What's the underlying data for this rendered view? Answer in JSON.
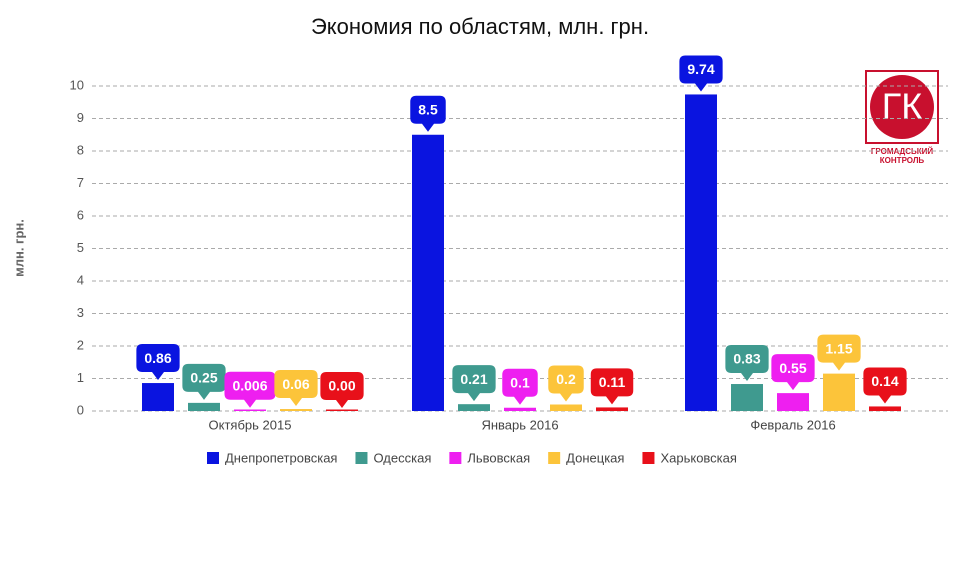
{
  "chart_data": {
    "type": "bar",
    "title": "Экономия по областям, млн. грн.",
    "y_label": "млн. грн.",
    "categories": [
      "Октябрь 2015",
      "Январь 2016",
      "Февраль 2016"
    ],
    "series": [
      {
        "name": "Днепропетровская",
        "color": "#0a14e0",
        "values": [
          0.86,
          8.5,
          9.74
        ],
        "value_labels": [
          "0.86",
          "8.5",
          "9.74"
        ]
      },
      {
        "name": "Одесская",
        "color": "#3f9a8f",
        "values": [
          0.25,
          0.21,
          0.83
        ],
        "value_labels": [
          "0.25",
          "0.21",
          "0.83"
        ]
      },
      {
        "name": "Львовская",
        "color": "#ee1ff0",
        "values": [
          0.006,
          0.1,
          0.55
        ],
        "value_labels": [
          "0.006",
          "0.1",
          "0.55"
        ]
      },
      {
        "name": "Донецкая",
        "color": "#fcc43a",
        "values": [
          0.06,
          0.2,
          1.15
        ],
        "value_labels": [
          "0.06",
          "0.2",
          "1.15"
        ]
      },
      {
        "name": "Харьковская",
        "color": "#e8101a",
        "values": [
          0,
          0.11,
          0.14
        ],
        "value_labels": [
          "0.00",
          "0.11",
          "0.14"
        ]
      }
    ],
    "ylim": [
      0,
      10
    ],
    "yticks": [
      0,
      1,
      2,
      3,
      4,
      5,
      6,
      7,
      8,
      9,
      10
    ],
    "grid": true,
    "legend": "bottom"
  },
  "logo": {
    "mark": "ГК",
    "lines": [
      "ГРОМАДСЬКИЙ",
      "КОНТРОЛЬ"
    ]
  }
}
